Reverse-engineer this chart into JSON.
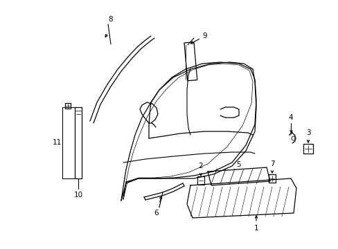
{
  "background_color": "#ffffff",
  "line_color": "#000000",
  "figsize": [
    4.89,
    3.6
  ],
  "dpi": 100,
  "font_size": 7.5
}
